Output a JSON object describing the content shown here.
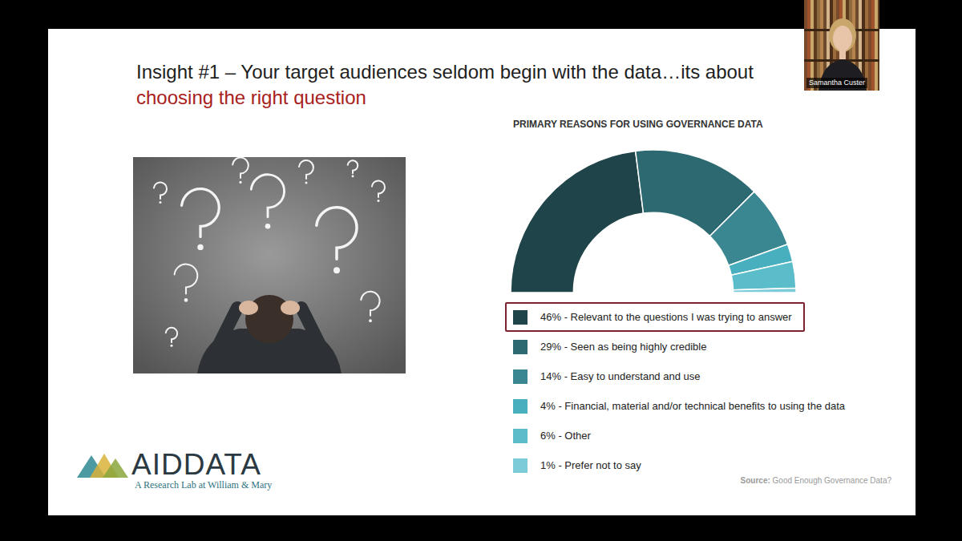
{
  "slide": {
    "title": {
      "text": "Insight #1 – Your target audiences seldom begin with the data…its about",
      "highlight": "choosing the right question"
    },
    "logo": {
      "name": "AIDDATA",
      "tagline": "A Research Lab at William & Mary"
    },
    "source": {
      "label": "Source:",
      "text": "Good Enough Governance Data?"
    }
  },
  "presenter": "Samantha Custer",
  "chart_data": {
    "type": "pie",
    "title": "PRIMARY REASONS FOR USING GOVERNANCE DATA",
    "categories": [
      "46% - Relevant to the questions I was trying to answer",
      "29% - Seen as being highly credible",
      "14% - Easy to understand and use",
      "4% - Financial, material and/or technical benefits to using the data",
      "6% - Other",
      "1% - Prefer not to say"
    ],
    "values": [
      46,
      29,
      14,
      4,
      6,
      1
    ],
    "colors": [
      "#1f4449",
      "#2c6970",
      "#3a8791",
      "#48afbe",
      "#5bbcca",
      "#7ccbd9"
    ],
    "legend": "bottom"
  }
}
